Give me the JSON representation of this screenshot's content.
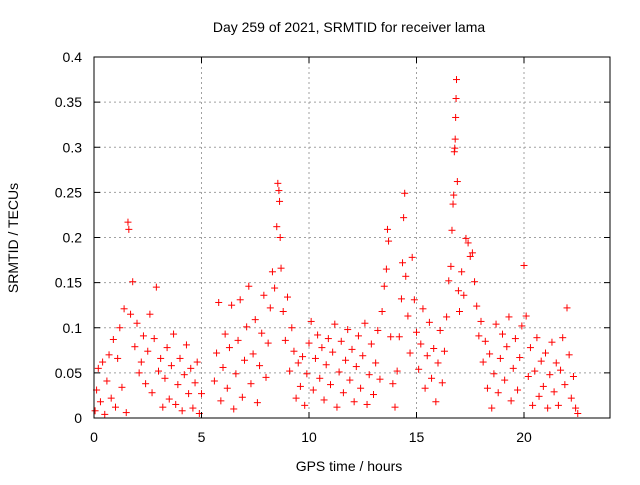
{
  "chart_data": {
    "type": "scatter",
    "title": "Day 259 of 2021, SRMTID for receiver lama",
    "xlabel": "GPS time / hours",
    "ylabel": "SRMTID / TECUs",
    "xlim": [
      0,
      24
    ],
    "ylim": [
      0,
      0.4
    ],
    "x_ticks": [
      0,
      5,
      10,
      15,
      20
    ],
    "y_ticks": [
      0,
      0.05,
      0.1,
      0.15,
      0.2,
      0.25,
      0.3,
      0.35,
      0.4
    ],
    "x_tick_labels": [
      "0",
      "5",
      "10",
      "15",
      "20"
    ],
    "y_tick_labels": [
      "0",
      "0.05",
      "0.1",
      "0.15",
      "0.2",
      "0.25",
      "0.3",
      "0.35",
      "0.4"
    ],
    "grid": true,
    "marker": "+",
    "color": "#ff0000",
    "data_x_range_hours": [
      0,
      22.5
    ],
    "series": [
      {
        "name": "SRMTID",
        "points": [
          [
            0.05,
            0.008
          ],
          [
            0.12,
            0.031
          ],
          [
            0.2,
            0.055
          ],
          [
            0.3,
            0.018
          ],
          [
            0.4,
            0.062
          ],
          [
            0.5,
            0.004
          ],
          [
            0.6,
            0.041
          ],
          [
            0.7,
            0.07
          ],
          [
            0.8,
            0.022
          ],
          [
            0.9,
            0.087
          ],
          [
            1.0,
            0.012
          ],
          [
            1.1,
            0.066
          ],
          [
            1.2,
            0.1
          ],
          [
            1.3,
            0.034
          ],
          [
            1.4,
            0.121
          ],
          [
            1.5,
            0.006
          ],
          [
            1.58,
            0.217
          ],
          [
            1.62,
            0.209
          ],
          [
            1.7,
            0.115
          ],
          [
            1.8,
            0.151
          ],
          [
            1.9,
            0.079
          ],
          [
            2.0,
            0.105
          ],
          [
            2.1,
            0.05
          ],
          [
            2.2,
            0.062
          ],
          [
            2.3,
            0.091
          ],
          [
            2.4,
            0.038
          ],
          [
            2.5,
            0.074
          ],
          [
            2.6,
            0.115
          ],
          [
            2.7,
            0.028
          ],
          [
            2.8,
            0.088
          ],
          [
            2.9,
            0.145
          ],
          [
            3.0,
            0.052
          ],
          [
            3.1,
            0.066
          ],
          [
            3.2,
            0.012
          ],
          [
            3.3,
            0.044
          ],
          [
            3.4,
            0.078
          ],
          [
            3.5,
            0.021
          ],
          [
            3.6,
            0.058
          ],
          [
            3.7,
            0.093
          ],
          [
            3.8,
            0.015
          ],
          [
            3.9,
            0.037
          ],
          [
            4.0,
            0.066
          ],
          [
            4.1,
            0.008
          ],
          [
            4.2,
            0.048
          ],
          [
            4.3,
            0.081
          ],
          [
            4.4,
            0.027
          ],
          [
            4.5,
            0.055
          ],
          [
            4.6,
            0.011
          ],
          [
            4.7,
            0.039
          ],
          [
            4.8,
            0.062
          ],
          [
            4.9,
            0.005
          ],
          [
            5.0,
            0.027
          ],
          [
            5.6,
            0.041
          ],
          [
            5.7,
            0.072
          ],
          [
            5.8,
            0.128
          ],
          [
            5.9,
            0.019
          ],
          [
            6.0,
            0.056
          ],
          [
            6.1,
            0.093
          ],
          [
            6.2,
            0.033
          ],
          [
            6.3,
            0.078
          ],
          [
            6.4,
            0.125
          ],
          [
            6.5,
            0.01
          ],
          [
            6.6,
            0.049
          ],
          [
            6.7,
            0.086
          ],
          [
            6.8,
            0.131
          ],
          [
            6.9,
            0.023
          ],
          [
            7.0,
            0.064
          ],
          [
            7.1,
            0.101
          ],
          [
            7.2,
            0.146
          ],
          [
            7.3,
            0.038
          ],
          [
            7.4,
            0.071
          ],
          [
            7.5,
            0.109
          ],
          [
            7.6,
            0.017
          ],
          [
            7.7,
            0.058
          ],
          [
            7.8,
            0.094
          ],
          [
            7.9,
            0.136
          ],
          [
            8.0,
            0.045
          ],
          [
            8.1,
            0.083
          ],
          [
            8.2,
            0.122
          ],
          [
            8.3,
            0.162
          ],
          [
            8.4,
            0.144
          ],
          [
            8.5,
            0.212
          ],
          [
            8.55,
            0.26
          ],
          [
            8.6,
            0.252
          ],
          [
            8.63,
            0.24
          ],
          [
            8.66,
            0.2
          ],
          [
            8.7,
            0.166
          ],
          [
            8.8,
            0.118
          ],
          [
            8.9,
            0.086
          ],
          [
            9.0,
            0.134
          ],
          [
            9.1,
            0.052
          ],
          [
            9.2,
            0.1
          ],
          [
            9.3,
            0.074
          ],
          [
            9.4,
            0.022
          ],
          [
            9.5,
            0.061
          ],
          [
            9.6,
            0.035
          ],
          [
            9.7,
            0.068
          ],
          [
            9.8,
            0.014
          ],
          [
            9.9,
            0.049
          ],
          [
            10.0,
            0.083
          ],
          [
            10.1,
            0.107
          ],
          [
            10.2,
            0.031
          ],
          [
            10.3,
            0.066
          ],
          [
            10.4,
            0.092
          ],
          [
            10.5,
            0.044
          ],
          [
            10.6,
            0.078
          ],
          [
            10.7,
            0.02
          ],
          [
            10.8,
            0.059
          ],
          [
            10.9,
            0.088
          ],
          [
            11.0,
            0.037
          ],
          [
            11.1,
            0.073
          ],
          [
            11.2,
            0.104
          ],
          [
            11.3,
            0.012
          ],
          [
            11.4,
            0.051
          ],
          [
            11.5,
            0.085
          ],
          [
            11.6,
            0.028
          ],
          [
            11.7,
            0.064
          ],
          [
            11.8,
            0.098
          ],
          [
            11.9,
            0.042
          ],
          [
            12.0,
            0.076
          ],
          [
            12.1,
            0.018
          ],
          [
            12.2,
            0.057
          ],
          [
            12.3,
            0.091
          ],
          [
            12.4,
            0.033
          ],
          [
            12.5,
            0.069
          ],
          [
            12.6,
            0.105
          ],
          [
            12.7,
            0.015
          ],
          [
            12.8,
            0.048
          ],
          [
            12.9,
            0.082
          ],
          [
            13.0,
            0.026
          ],
          [
            13.1,
            0.061
          ],
          [
            13.2,
            0.097
          ],
          [
            13.3,
            0.043
          ],
          [
            13.4,
            0.118
          ],
          [
            13.5,
            0.146
          ],
          [
            13.6,
            0.165
          ],
          [
            13.65,
            0.209
          ],
          [
            13.7,
            0.196
          ],
          [
            13.8,
            0.09
          ],
          [
            13.9,
            0.038
          ],
          [
            14.0,
            0.012
          ],
          [
            14.1,
            0.052
          ],
          [
            14.2,
            0.09
          ],
          [
            14.3,
            0.132
          ],
          [
            14.35,
            0.172
          ],
          [
            14.4,
            0.222
          ],
          [
            14.45,
            0.249
          ],
          [
            14.5,
            0.157
          ],
          [
            14.6,
            0.113
          ],
          [
            14.7,
            0.072
          ],
          [
            14.8,
            0.178
          ],
          [
            14.9,
            0.131
          ],
          [
            15.0,
            0.095
          ],
          [
            15.1,
            0.054
          ],
          [
            15.2,
            0.082
          ],
          [
            15.3,
            0.121
          ],
          [
            15.4,
            0.033
          ],
          [
            15.5,
            0.069
          ],
          [
            15.6,
            0.106
          ],
          [
            15.7,
            0.044
          ],
          [
            15.8,
            0.077
          ],
          [
            15.9,
            0.018
          ],
          [
            16.0,
            0.061
          ],
          [
            16.1,
            0.097
          ],
          [
            16.2,
            0.039
          ],
          [
            16.3,
            0.074
          ],
          [
            16.4,
            0.112
          ],
          [
            16.5,
            0.152
          ],
          [
            16.6,
            0.168
          ],
          [
            16.65,
            0.208
          ],
          [
            16.7,
            0.237
          ],
          [
            16.73,
            0.247
          ],
          [
            16.76,
            0.295
          ],
          [
            16.78,
            0.299
          ],
          [
            16.8,
            0.309
          ],
          [
            16.82,
            0.333
          ],
          [
            16.84,
            0.354
          ],
          [
            16.86,
            0.375
          ],
          [
            16.9,
            0.262
          ],
          [
            16.95,
            0.141
          ],
          [
            17.0,
            0.118
          ],
          [
            17.1,
            0.162
          ],
          [
            17.2,
            0.136
          ],
          [
            17.3,
            0.199
          ],
          [
            17.4,
            0.194
          ],
          [
            17.5,
            0.179
          ],
          [
            17.6,
            0.183
          ],
          [
            17.7,
            0.151
          ],
          [
            17.8,
            0.124
          ],
          [
            17.9,
            0.091
          ],
          [
            18.0,
            0.107
          ],
          [
            18.1,
            0.062
          ],
          [
            18.2,
            0.085
          ],
          [
            18.3,
            0.033
          ],
          [
            18.4,
            0.071
          ],
          [
            18.5,
            0.011
          ],
          [
            18.6,
            0.049
          ],
          [
            18.7,
            0.104
          ],
          [
            18.8,
            0.028
          ],
          [
            18.9,
            0.066
          ],
          [
            19.0,
            0.093
          ],
          [
            19.1,
            0.042
          ],
          [
            19.2,
            0.079
          ],
          [
            19.3,
            0.112
          ],
          [
            19.4,
            0.019
          ],
          [
            19.5,
            0.055
          ],
          [
            19.6,
            0.088
          ],
          [
            19.7,
            0.031
          ],
          [
            19.8,
            0.067
          ],
          [
            19.9,
            0.102
          ],
          [
            20.0,
            0.169
          ],
          [
            20.1,
            0.113
          ],
          [
            20.2,
            0.046
          ],
          [
            20.3,
            0.078
          ],
          [
            20.4,
            0.014
          ],
          [
            20.5,
            0.052
          ],
          [
            20.6,
            0.089
          ],
          [
            20.7,
            0.024
          ],
          [
            20.8,
            0.063
          ],
          [
            20.9,
            0.035
          ],
          [
            21.0,
            0.072
          ],
          [
            21.1,
            0.011
          ],
          [
            21.2,
            0.048
          ],
          [
            21.3,
            0.084
          ],
          [
            21.4,
            0.029
          ],
          [
            21.5,
            0.061
          ],
          [
            21.6,
            0.014
          ],
          [
            21.7,
            0.053
          ],
          [
            21.8,
            0.089
          ],
          [
            21.9,
            0.037
          ],
          [
            22.0,
            0.122
          ],
          [
            22.1,
            0.07
          ],
          [
            22.2,
            0.022
          ],
          [
            22.3,
            0.046
          ],
          [
            22.4,
            0.011
          ],
          [
            22.5,
            0.005
          ]
        ]
      }
    ]
  }
}
